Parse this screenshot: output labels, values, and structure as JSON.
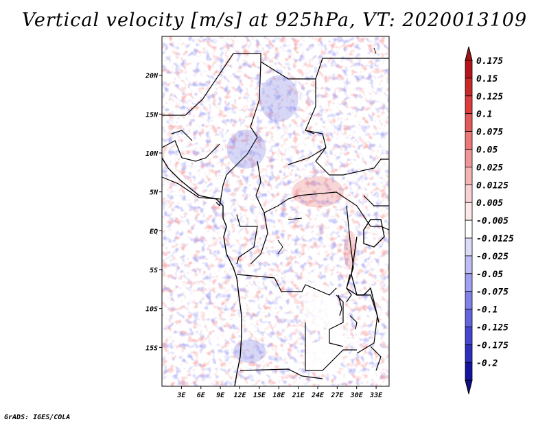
{
  "chart_data": {
    "type": "heatmap",
    "title": "Vertical velocity [m/s] at 925hPa, VT: 2020013109",
    "variable": "Vertical velocity",
    "units": "m/s",
    "level": "925hPa",
    "valid_time": "2020013109",
    "xlabel": "",
    "ylabel": "",
    "lon_range": [
      0,
      35
    ],
    "lat_range": [
      -20,
      25
    ],
    "x_ticks": [
      {
        "value": 3,
        "label": "3E"
      },
      {
        "value": 6,
        "label": "6E"
      },
      {
        "value": 9,
        "label": "9E"
      },
      {
        "value": 12,
        "label": "12E"
      },
      {
        "value": 15,
        "label": "15E"
      },
      {
        "value": 18,
        "label": "18E"
      },
      {
        "value": 21,
        "label": "21E"
      },
      {
        "value": 24,
        "label": "24E"
      },
      {
        "value": 27,
        "label": "27E"
      },
      {
        "value": 30,
        "label": "30E"
      },
      {
        "value": 33,
        "label": "33E"
      }
    ],
    "y_ticks": [
      {
        "value": 20,
        "label": "20N"
      },
      {
        "value": 15,
        "label": "15N"
      },
      {
        "value": 10,
        "label": "10N"
      },
      {
        "value": 5,
        "label": "5N"
      },
      {
        "value": 0,
        "label": "EQ"
      },
      {
        "value": -5,
        "label": "5S"
      },
      {
        "value": -10,
        "label": "10S"
      },
      {
        "value": -15,
        "label": "15S"
      }
    ],
    "colorbar": {
      "levels": [
        {
          "label": "0.175",
          "color": "#b4141a"
        },
        {
          "label": "0.15",
          "color": "#c82828"
        },
        {
          "label": "0.125",
          "color": "#dc3c3c"
        },
        {
          "label": "0.1",
          "color": "#e45a5a"
        },
        {
          "label": "0.075",
          "color": "#ec7878"
        },
        {
          "label": "0.05",
          "color": "#f09696"
        },
        {
          "label": "0.025",
          "color": "#f4b4b4"
        },
        {
          "label": "0.0125",
          "color": "#f8d2d2"
        },
        {
          "label": "0.005",
          "color": "#fce8e8"
        },
        {
          "label": "-0.005",
          "color": "#ffffff"
        },
        {
          "label": "-0.0125",
          "color": "#dcdcfa"
        },
        {
          "label": "-0.025",
          "color": "#bebef5"
        },
        {
          "label": "-0.05",
          "color": "#a0a0f0"
        },
        {
          "label": "-0.075",
          "color": "#8282e6"
        },
        {
          "label": "-0.1",
          "color": "#6464dc"
        },
        {
          "label": "-0.125",
          "color": "#4646d2"
        },
        {
          "label": "-0.175",
          "color": "#2d2dbe"
        },
        {
          "label": "-0.2",
          "color": "#1414a0"
        }
      ],
      "top_arrow_color": "#a01414",
      "bottom_arrow_color": "#0f0f8c"
    },
    "field_description_regions": [
      {
        "lon": [
          10,
          16
        ],
        "lat": [
          8,
          13
        ],
        "sign": "negative"
      },
      {
        "lon": [
          15,
          21
        ],
        "lat": [
          14,
          20
        ],
        "sign": "negative"
      },
      {
        "lon": [
          11,
          16
        ],
        "lat": [
          -17,
          -14
        ],
        "sign": "negative"
      },
      {
        "lon": [
          20,
          28
        ],
        "lat": [
          3,
          7
        ],
        "sign": "positive"
      },
      {
        "lon": [
          28,
          30
        ],
        "lat": [
          -5,
          0
        ],
        "sign": "positive"
      }
    ]
  },
  "credit": "GrADS: IGES/COLA"
}
